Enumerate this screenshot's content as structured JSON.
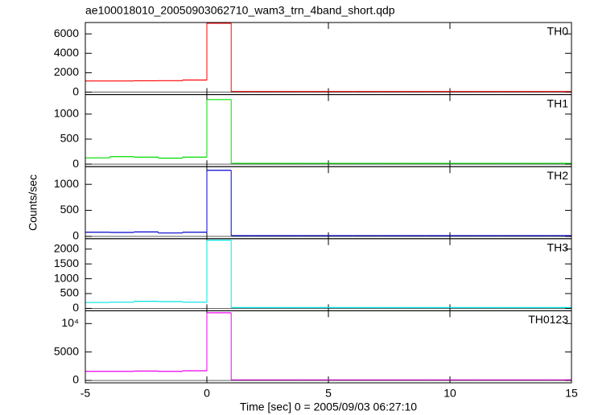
{
  "title": "ae100018010_20050903062710_wam3_trn_4band_short.qdp",
  "x_label": "Time [sec] 0 = 2005/09/03 06:27:10",
  "y_label": "Counts/sec",
  "chart_data": [
    {
      "type": "histogram",
      "label": "TH0",
      "color": "#ff0000",
      "bins": [
        -5,
        -4,
        -3,
        -2,
        -1,
        0,
        1,
        2,
        3,
        4,
        5,
        6,
        7,
        8,
        9,
        10,
        11,
        12,
        13,
        14,
        15
      ],
      "values": [
        1150,
        1150,
        1170,
        1180,
        1250,
        7100,
        60,
        60,
        60,
        60,
        60,
        60,
        60,
        60,
        60,
        60,
        60,
        60,
        60,
        60
      ],
      "xlim": [
        -5,
        15
      ],
      "xticks": [
        -5,
        0,
        5,
        10,
        15
      ],
      "ylim": [
        -250,
        7170
      ],
      "yticks": [
        0,
        2000,
        4000,
        6000
      ]
    },
    {
      "type": "histogram",
      "label": "TH1",
      "color": "#00dd00",
      "bins": [
        -5,
        -4,
        -3,
        -2,
        -1,
        0,
        1,
        2,
        3,
        4,
        5,
        6,
        7,
        8,
        9,
        10,
        11,
        12,
        13,
        14,
        15
      ],
      "values": [
        125,
        150,
        140,
        120,
        140,
        1290,
        15,
        15,
        15,
        15,
        15,
        15,
        15,
        15,
        15,
        15,
        15,
        15,
        15,
        15
      ],
      "xlim": [
        -5,
        15
      ],
      "xticks": [
        -5,
        0,
        5,
        10,
        15
      ],
      "ylim": [
        -50,
        1390
      ],
      "yticks": [
        0,
        500,
        1000
      ]
    },
    {
      "type": "histogram",
      "label": "TH2",
      "color": "#0000cc",
      "bins": [
        -5,
        -4,
        -3,
        -2,
        -1,
        0,
        1,
        2,
        3,
        4,
        5,
        6,
        7,
        8,
        9,
        10,
        11,
        12,
        13,
        14,
        15
      ],
      "values": [
        80,
        75,
        85,
        65,
        80,
        1270,
        15,
        15,
        15,
        15,
        15,
        15,
        15,
        15,
        15,
        15,
        15,
        15,
        15,
        15
      ],
      "xlim": [
        -5,
        15
      ],
      "xticks": [
        -5,
        0,
        5,
        10,
        15
      ],
      "ylim": [
        -45,
        1340
      ],
      "yticks": [
        0,
        500,
        1000
      ]
    },
    {
      "type": "histogram",
      "label": "TH3",
      "color": "#00e5e5",
      "bins": [
        -5,
        -4,
        -3,
        -2,
        -1,
        0,
        1,
        2,
        3,
        4,
        5,
        6,
        7,
        8,
        9,
        10,
        11,
        12,
        13,
        14,
        15
      ],
      "values": [
        200,
        210,
        240,
        230,
        210,
        2300,
        30,
        30,
        30,
        30,
        30,
        30,
        30,
        30,
        30,
        30,
        30,
        30,
        30,
        30
      ],
      "xlim": [
        -5,
        15
      ],
      "xticks": [
        -5,
        0,
        5,
        10,
        15
      ],
      "ylim": [
        -80,
        2350
      ],
      "yticks": [
        0,
        500,
        1000,
        1500,
        2000
      ]
    },
    {
      "type": "histogram",
      "label": "TH0123",
      "color": "#ee00ee",
      "bins": [
        -5,
        -4,
        -3,
        -2,
        -1,
        0,
        1,
        2,
        3,
        4,
        5,
        6,
        7,
        8,
        9,
        10,
        11,
        12,
        13,
        14,
        15
      ],
      "values": [
        1600,
        1600,
        1650,
        1600,
        1700,
        11900,
        100,
        100,
        100,
        100,
        100,
        100,
        100,
        100,
        100,
        100,
        100,
        100,
        100,
        100
      ],
      "xlim": [
        -5,
        15
      ],
      "xticks": [
        -5,
        0,
        5,
        10,
        15
      ],
      "ylim": [
        -420,
        12250
      ],
      "yticks": [
        0,
        5000,
        {
          "value": 10000,
          "label": "10⁴"
        }
      ]
    }
  ]
}
